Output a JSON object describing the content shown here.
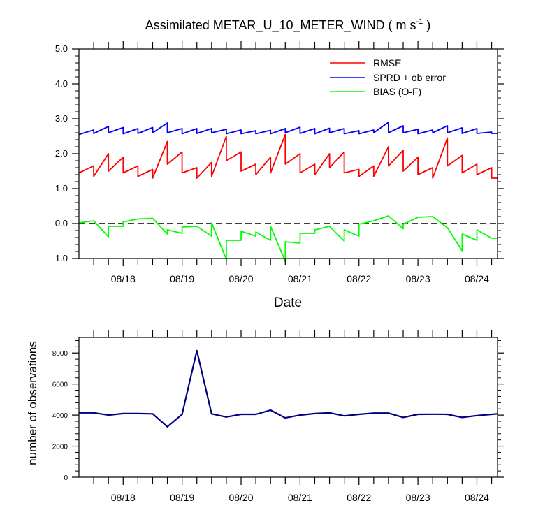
{
  "colors": {
    "rmse": "#ff0000",
    "sprd": "#0000ff",
    "bias": "#00ff00",
    "obs": "#000080",
    "frame": "#000000"
  },
  "chart_data": [
    {
      "type": "line",
      "title_main": "Assimilated METAR_U_10_METER_WIND ( m s",
      "title_sup": "-1",
      "title_end": " )",
      "xlabel": "Date",
      "ylabel": "",
      "xlim": [
        0,
        7.1
      ],
      "ylim": [
        -1.0,
        5.0
      ],
      "yticks": [
        -1.0,
        0.0,
        1.0,
        2.0,
        3.0,
        4.0,
        5.0
      ],
      "ytick_labels": [
        "-1.0",
        "0.0",
        "1.0",
        "2.0",
        "3.0",
        "4.0",
        "5.0"
      ],
      "xticks": [
        0.75,
        1.75,
        2.75,
        3.75,
        4.75,
        5.75,
        6.75
      ],
      "xtick_labels": [
        "08/18",
        "08/19",
        "08/20",
        "08/21",
        "08/22",
        "08/23",
        "08/24"
      ],
      "reference_line": 0.0,
      "legend": [
        "RMSE",
        "SPRD + ob error",
        "BIAS (O-F)"
      ],
      "series": [
        {
          "name": "RMSE",
          "x": [
            0,
            0.25,
            0.25,
            0.5,
            0.5,
            0.75,
            0.75,
            1.0,
            1.0,
            1.25,
            1.25,
            1.5,
            1.5,
            1.75,
            1.75,
            2.0,
            2.0,
            2.25,
            2.25,
            2.5,
            2.5,
            2.75,
            2.75,
            3.0,
            3.0,
            3.25,
            3.25,
            3.5,
            3.5,
            3.75,
            3.75,
            4.0,
            4.0,
            4.25,
            4.25,
            4.5,
            4.5,
            4.75,
            4.75,
            5.0,
            5.0,
            5.25,
            5.25,
            5.5,
            5.5,
            5.75,
            5.75,
            6.0,
            6.0,
            6.25,
            6.25,
            6.5,
            6.5,
            6.75,
            6.75,
            7.0,
            7.0,
            7.1
          ],
          "values": [
            1.45,
            1.65,
            1.35,
            2.0,
            1.5,
            1.9,
            1.45,
            1.65,
            1.35,
            1.55,
            1.3,
            2.35,
            1.7,
            2.05,
            1.45,
            1.6,
            1.3,
            1.75,
            1.35,
            2.5,
            1.8,
            2.05,
            1.5,
            1.7,
            1.4,
            1.9,
            1.45,
            2.55,
            1.7,
            2.0,
            1.45,
            1.7,
            1.4,
            2.0,
            1.6,
            2.05,
            1.45,
            1.55,
            1.35,
            1.65,
            1.35,
            2.2,
            1.65,
            2.1,
            1.5,
            1.9,
            1.4,
            1.6,
            1.3,
            2.45,
            1.65,
            1.95,
            1.45,
            1.7,
            1.4,
            1.6,
            1.3,
            1.3
          ]
        },
        {
          "name": "SPRD + ob error",
          "x": [
            0,
            0.25,
            0.25,
            0.5,
            0.5,
            0.75,
            0.75,
            1.0,
            1.0,
            1.25,
            1.25,
            1.5,
            1.5,
            1.75,
            1.75,
            2.0,
            2.0,
            2.25,
            2.25,
            2.5,
            2.5,
            2.75,
            2.75,
            3.0,
            3.0,
            3.25,
            3.25,
            3.5,
            3.5,
            3.75,
            3.75,
            4.0,
            4.0,
            4.25,
            4.25,
            4.5,
            4.5,
            4.75,
            4.75,
            5.0,
            5.0,
            5.25,
            5.25,
            5.5,
            5.5,
            5.75,
            5.75,
            6.0,
            6.0,
            6.25,
            6.25,
            6.5,
            6.5,
            6.75,
            6.75,
            7.0,
            7.0,
            7.1
          ],
          "values": [
            2.55,
            2.68,
            2.58,
            2.78,
            2.6,
            2.75,
            2.57,
            2.72,
            2.58,
            2.75,
            2.6,
            2.88,
            2.6,
            2.72,
            2.57,
            2.72,
            2.58,
            2.72,
            2.6,
            2.7,
            2.57,
            2.68,
            2.57,
            2.66,
            2.57,
            2.67,
            2.57,
            2.72,
            2.6,
            2.76,
            2.58,
            2.72,
            2.57,
            2.73,
            2.6,
            2.72,
            2.57,
            2.66,
            2.57,
            2.68,
            2.6,
            2.9,
            2.6,
            2.8,
            2.6,
            2.7,
            2.57,
            2.68,
            2.6,
            2.8,
            2.6,
            2.74,
            2.58,
            2.72,
            2.58,
            2.62,
            2.58,
            2.58
          ]
        },
        {
          "name": "BIAS (O-F)",
          "x": [
            0,
            0.25,
            0.5,
            0.5,
            0.75,
            0.75,
            1.0,
            1.25,
            1.5,
            1.5,
            1.75,
            1.75,
            2.0,
            2.25,
            2.25,
            2.5,
            2.5,
            2.75,
            2.75,
            3.0,
            3.0,
            3.25,
            3.25,
            3.5,
            3.5,
            3.75,
            3.75,
            4.0,
            4.0,
            4.25,
            4.25,
            4.5,
            4.5,
            4.75,
            4.75,
            5.0,
            5.0,
            5.25,
            5.25,
            5.5,
            5.5,
            5.75,
            5.75,
            6.0,
            6.0,
            6.25,
            6.25,
            6.5,
            6.5,
            6.75,
            6.75,
            7.0,
            7.0,
            7.1
          ],
          "values": [
            0.02,
            0.08,
            -0.38,
            -0.08,
            -0.08,
            0.05,
            0.13,
            0.15,
            -0.3,
            -0.18,
            -0.28,
            -0.1,
            -0.08,
            -0.36,
            0.02,
            -1.02,
            -0.48,
            -0.48,
            -0.22,
            -0.36,
            -0.24,
            -0.48,
            -0.08,
            -1.08,
            -0.52,
            -0.56,
            -0.28,
            -0.28,
            -0.18,
            -0.08,
            -0.08,
            -0.5,
            -0.18,
            -0.36,
            -0.02,
            0.08,
            0.08,
            0.22,
            0.22,
            -0.15,
            -0.02,
            0.18,
            0.18,
            0.2,
            0.2,
            -0.12,
            -0.12,
            -0.78,
            -0.3,
            -0.48,
            -0.18,
            -0.42,
            -0.42,
            -0.42
          ]
        }
      ]
    },
    {
      "type": "line",
      "title": "",
      "xlabel": "",
      "ylabel": "number of observations",
      "xlim": [
        0,
        7.1
      ],
      "ylim": [
        0,
        9000
      ],
      "yticks": [
        0,
        2000,
        4000,
        6000,
        8000
      ],
      "ytick_labels": [
        "0",
        "2000",
        "4000",
        "6000",
        "8000"
      ],
      "xticks": [
        0.75,
        1.75,
        2.75,
        3.75,
        4.75,
        5.75,
        6.75
      ],
      "xtick_labels": [
        "08/18",
        "08/19",
        "08/20",
        "08/21",
        "08/22",
        "08/23",
        "08/24"
      ],
      "series": [
        {
          "name": "observations",
          "x": [
            0,
            0.25,
            0.5,
            0.75,
            1.0,
            1.25,
            1.5,
            1.75,
            2.0,
            2.25,
            2.5,
            2.75,
            3.0,
            3.25,
            3.5,
            3.75,
            4.0,
            4.25,
            4.5,
            4.75,
            5.0,
            5.25,
            5.5,
            5.75,
            6.0,
            6.25,
            6.5,
            6.75,
            7.0,
            7.1
          ],
          "values": [
            4150,
            4150,
            4000,
            4100,
            4100,
            4080,
            3250,
            4050,
            8150,
            4080,
            3880,
            4050,
            4050,
            4320,
            3820,
            4000,
            4100,
            4150,
            3950,
            4050,
            4130,
            4130,
            3850,
            4050,
            4060,
            4050,
            3850,
            3970,
            4050,
            4080
          ]
        }
      ]
    }
  ]
}
